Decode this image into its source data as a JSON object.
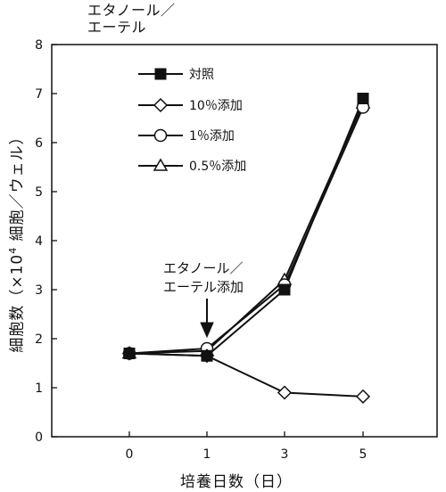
{
  "chart_data": {
    "type": "line",
    "title": "エタノール／\nエーテル",
    "xlabel": "培養日数（日）",
    "ylabel_main": "細胞数（×10",
    "ylabel_sup": "4",
    "ylabel_tail": " 細胞／ウェル）",
    "x": [
      0,
      1,
      3,
      5
    ],
    "xticks": [
      "0",
      "1",
      "3",
      "5"
    ],
    "ylim": [
      0,
      8
    ],
    "yticks": [
      "0",
      "1",
      "2",
      "3",
      "4",
      "5",
      "6",
      "7",
      "8"
    ],
    "grid": false,
    "legend_position": "top-left",
    "series": [
      {
        "name": "対照",
        "marker": "filled-square",
        "values": [
          1.7,
          1.65,
          3.0,
          6.9
        ]
      },
      {
        "name": "10％添加",
        "marker": "open-diamond",
        "values": [
          1.7,
          1.65,
          0.9,
          0.82
        ]
      },
      {
        "name": "1％添加",
        "marker": "open-circle",
        "values": [
          1.7,
          1.8,
          3.1,
          6.72
        ]
      },
      {
        "name": "0.5％添加",
        "marker": "open-triangle",
        "values": [
          1.7,
          1.75,
          3.2,
          6.8
        ]
      }
    ],
    "annotation": {
      "text_line1": "エタノール／",
      "text_line2": "エーテル添加",
      "points_to_x": 1
    }
  }
}
